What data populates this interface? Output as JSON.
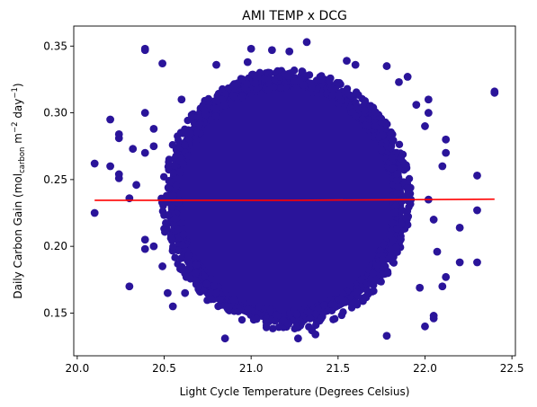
{
  "chart_data": {
    "type": "scatter",
    "title": "AMI TEMP x DCG",
    "xlabel": "Light Cycle Temperature (Degrees Celsius)",
    "ylabel": {
      "prefix": "Daily Carbon Gain (mol",
      "sub": "carbon",
      "mid1": " m",
      "sup1": "−2",
      "mid2": " day",
      "sup2": "−1",
      "suffix": ")"
    },
    "xlim": [
      19.98,
      22.52
    ],
    "ylim": [
      0.118,
      0.365
    ],
    "xticks": [
      {
        "value": 20.0,
        "label": "20.0"
      },
      {
        "value": 20.5,
        "label": "20.5"
      },
      {
        "value": 21.0,
        "label": "21.0"
      },
      {
        "value": 21.5,
        "label": "21.5"
      },
      {
        "value": 22.0,
        "label": "22.0"
      },
      {
        "value": 22.5,
        "label": "22.5"
      }
    ],
    "yticks": [
      {
        "value": 0.15,
        "label": "0.15"
      },
      {
        "value": 0.2,
        "label": "0.20"
      },
      {
        "value": 0.25,
        "label": "0.25"
      },
      {
        "value": 0.3,
        "label": "0.30"
      },
      {
        "value": 0.35,
        "label": "0.35"
      }
    ],
    "grid": false,
    "colors": {
      "points": "#2a149a",
      "trend": "#ff0000"
    },
    "cloud": {
      "x_center": 21.2,
      "y_center": 0.235,
      "x_halfwidth": 0.68,
      "y_halfwidth": 0.092
    },
    "points": [
      [
        20.1,
        0.262
      ],
      [
        20.1,
        0.225
      ],
      [
        20.19,
        0.295
      ],
      [
        20.19,
        0.26
      ],
      [
        20.24,
        0.284
      ],
      [
        20.24,
        0.281
      ],
      [
        20.24,
        0.254
      ],
      [
        20.24,
        0.251
      ],
      [
        20.3,
        0.17
      ],
      [
        20.3,
        0.236
      ],
      [
        20.32,
        0.273
      ],
      [
        20.34,
        0.246
      ],
      [
        20.39,
        0.348
      ],
      [
        20.39,
        0.347
      ],
      [
        20.39,
        0.3
      ],
      [
        20.39,
        0.27
      ],
      [
        20.39,
        0.205
      ],
      [
        20.39,
        0.198
      ],
      [
        20.44,
        0.288
      ],
      [
        20.44,
        0.275
      ],
      [
        20.49,
        0.337
      ],
      [
        20.44,
        0.2
      ],
      [
        20.49,
        0.185
      ],
      [
        20.52,
        0.165
      ],
      [
        20.55,
        0.155
      ],
      [
        20.62,
        0.165
      ],
      [
        20.6,
        0.31
      ],
      [
        20.85,
        0.131
      ],
      [
        21.27,
        0.131
      ],
      [
        21.35,
        0.137
      ],
      [
        21.37,
        0.134
      ],
      [
        21.78,
        0.133
      ],
      [
        22.0,
        0.14
      ],
      [
        22.05,
        0.148
      ],
      [
        22.05,
        0.146
      ],
      [
        22.1,
        0.17
      ],
      [
        21.97,
        0.169
      ],
      [
        22.07,
        0.196
      ],
      [
        22.12,
        0.177
      ],
      [
        22.02,
        0.235
      ],
      [
        22.05,
        0.22
      ],
      [
        22.1,
        0.26
      ],
      [
        22.12,
        0.28
      ],
      [
        22.02,
        0.31
      ],
      [
        22.02,
        0.3
      ],
      [
        22.0,
        0.29
      ],
      [
        22.12,
        0.27
      ],
      [
        22.2,
        0.188
      ],
      [
        22.2,
        0.214
      ],
      [
        22.3,
        0.188
      ],
      [
        22.3,
        0.227
      ],
      [
        22.3,
        0.253
      ],
      [
        22.4,
        0.316
      ],
      [
        22.4,
        0.315
      ],
      [
        21.22,
        0.346
      ],
      [
        21.32,
        0.353
      ],
      [
        21.0,
        0.348
      ],
      [
        21.12,
        0.347
      ],
      [
        20.8,
        0.336
      ],
      [
        20.98,
        0.338
      ],
      [
        21.55,
        0.339
      ],
      [
        21.6,
        0.336
      ],
      [
        21.78,
        0.335
      ],
      [
        21.9,
        0.327
      ],
      [
        21.85,
        0.323
      ],
      [
        21.95,
        0.306
      ]
    ],
    "trend": {
      "x": [
        20.1,
        21.25,
        22.4
      ],
      "y": [
        0.2345,
        0.2345,
        0.2353
      ]
    }
  }
}
